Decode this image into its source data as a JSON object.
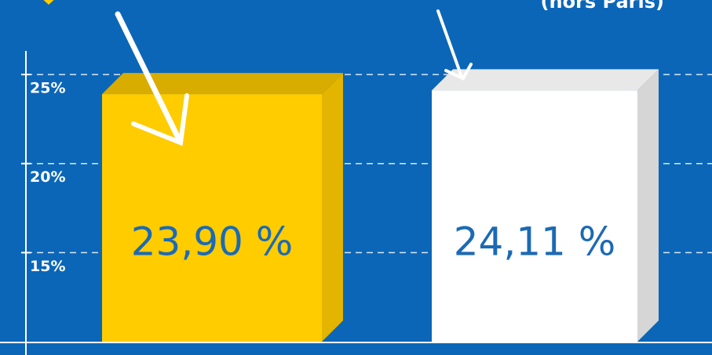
{
  "chart_data": {
    "type": "bar3d",
    "subtitle": "(hors Paris)",
    "values": [
      23.9,
      24.11
    ],
    "value_labels": [
      "23,90 %",
      "24,11 %"
    ],
    "colors": [
      "#ffcc00",
      "#ffffff"
    ],
    "ylim": [
      10,
      26.5
    ],
    "yticks": [
      {
        "value": 15,
        "label": "15%"
      },
      {
        "value": 20,
        "label": "20%"
      },
      {
        "value": 25,
        "label": "25%"
      }
    ],
    "grid": true
  }
}
